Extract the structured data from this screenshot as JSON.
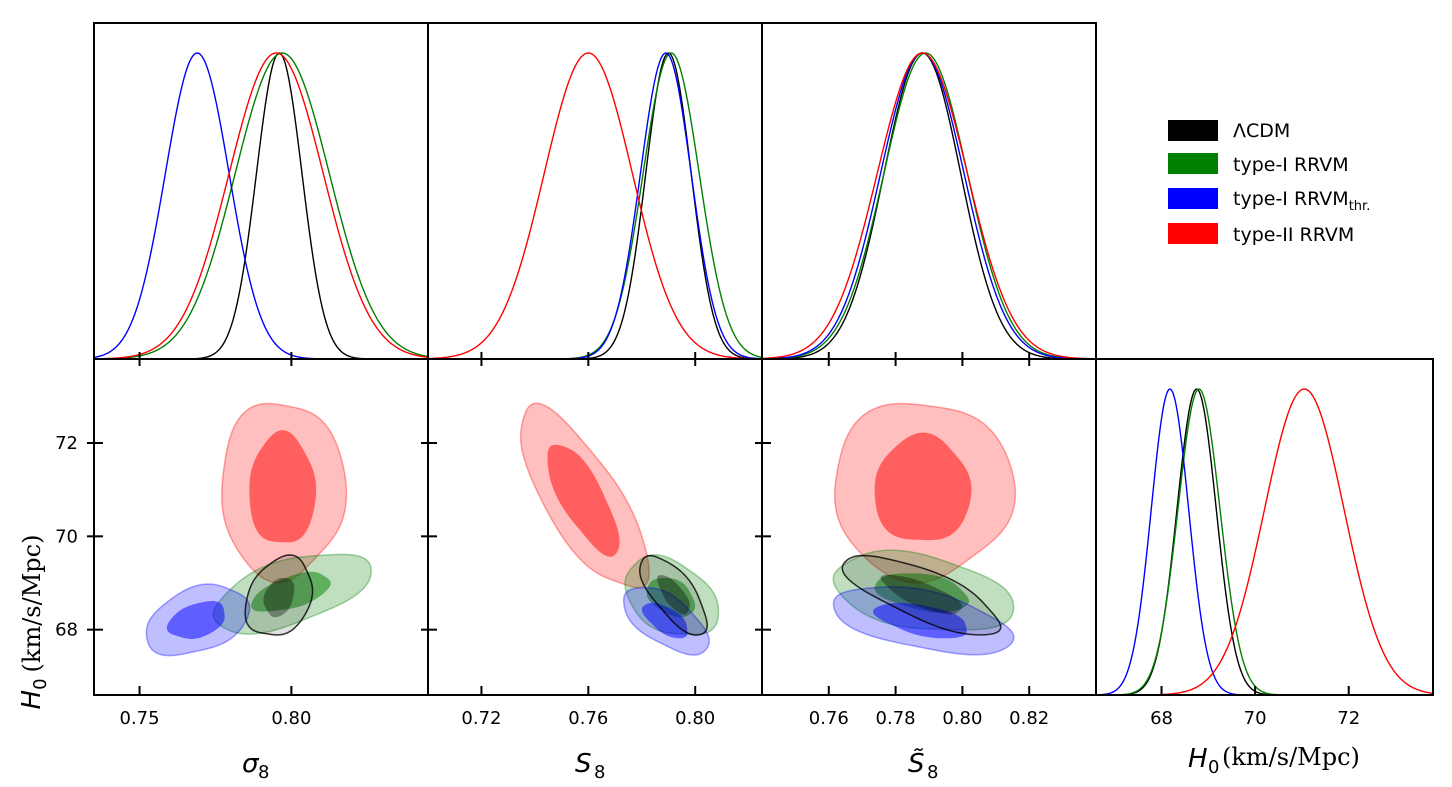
{
  "chart_data": {
    "type": "triangle",
    "legend": [
      {
        "name": "ΛCDM",
        "color": "#000000"
      },
      {
        "name": "type-I RRVM",
        "color": "#008000"
      },
      {
        "name": "type-I RRVM",
        "sub": "thr.",
        "color": "#0000ff"
      },
      {
        "name": "type-II RRVM",
        "color": "#ff0000"
      }
    ],
    "labels": {
      "sigma8": {
        "main": "σ",
        "sub": "8"
      },
      "S8": {
        "main": "S",
        "sub": "8"
      },
      "S8t": {
        "main": "S̃",
        "sub": "8"
      },
      "H0x": {
        "main": "H",
        "sub": "0",
        "unit": "(km/s/Mpc)"
      },
      "H0y": {
        "main": "H",
        "sub": "0",
        "unit": "(km/s/Mpc)"
      }
    },
    "axes": {
      "sigma8": {
        "range": [
          0.735,
          0.845
        ],
        "ticks": [
          0.75,
          0.8
        ],
        "tick_labels": [
          "0.75",
          "0.80"
        ]
      },
      "S8": {
        "range": [
          0.7,
          0.825
        ],
        "ticks": [
          0.72,
          0.76,
          0.8
        ],
        "tick_labels": [
          "0.72",
          "0.76",
          "0.80"
        ]
      },
      "S8t": {
        "range": [
          0.74,
          0.84
        ],
        "ticks": [
          0.76,
          0.78,
          0.8,
          0.82
        ],
        "tick_labels": [
          "0.76",
          "0.78",
          "0.80",
          "0.82"
        ]
      },
      "H0": {
        "range": [
          66.6,
          73.8
        ],
        "ticks": [
          68,
          70,
          72
        ],
        "tick_labels": [
          "68",
          "70",
          "72"
        ]
      }
    },
    "marginals": {
      "sigma8": [
        {
          "name": "ΛCDM",
          "mean": 0.796,
          "sigma": 0.0075
        },
        {
          "name": "type-I RRVM",
          "mean": 0.797,
          "sigma": 0.0155
        },
        {
          "name": "type-I RRVM thr.",
          "mean": 0.769,
          "sigma": 0.0105
        },
        {
          "name": "type-II RRVM",
          "mean": 0.795,
          "sigma": 0.0155
        }
      ],
      "S8": [
        {
          "name": "ΛCDM",
          "mean": 0.79,
          "sigma": 0.0085
        },
        {
          "name": "type-I RRVM",
          "mean": 0.791,
          "sigma": 0.0105
        },
        {
          "name": "type-I RRVM thr.",
          "mean": 0.789,
          "sigma": 0.0095
        },
        {
          "name": "type-II RRVM",
          "mean": 0.76,
          "sigma": 0.0165
        }
      ],
      "S8t": [
        {
          "name": "ΛCDM",
          "mean": 0.788,
          "sigma": 0.0115
        },
        {
          "name": "type-I RRVM",
          "mean": 0.789,
          "sigma": 0.0125
        },
        {
          "name": "type-I RRVM thr.",
          "mean": 0.788,
          "sigma": 0.0125
        },
        {
          "name": "type-II RRVM",
          "mean": 0.788,
          "sigma": 0.0135
        }
      ],
      "H0": [
        {
          "name": "ΛCDM",
          "mean": 68.75,
          "sigma": 0.42
        },
        {
          "name": "type-I RRVM",
          "mean": 68.8,
          "sigma": 0.45
        },
        {
          "name": "type-I RRVM thr.",
          "mean": 68.18,
          "sigma": 0.4
        },
        {
          "name": "type-II RRVM",
          "mean": 71.05,
          "sigma": 0.85
        }
      ]
    },
    "contours": {
      "sigma8": [
        {
          "name": "type-II RRVM",
          "mean": [
            0.797,
            71.0
          ],
          "outer": [
            0.0205,
            1.9
          ],
          "inner": [
            0.011,
            1.2
          ],
          "rho": 0.0
        },
        {
          "name": "type-I RRVM",
          "mean": [
            0.8,
            68.8
          ],
          "outer": [
            0.026,
            0.85
          ],
          "inner": [
            0.013,
            0.42
          ],
          "rho": 0.55
        },
        {
          "name": "type-I RRVM thr.",
          "mean": [
            0.769,
            68.2
          ],
          "outer": [
            0.017,
            0.75
          ],
          "inner": [
            0.0095,
            0.4
          ],
          "rho": 0.35
        },
        {
          "name": "ΛCDM",
          "mean": [
            0.796,
            68.7
          ],
          "outer": [
            0.011,
            0.85
          ],
          "inner": [
            0.005,
            0.42
          ],
          "rho": 0.25
        }
      ],
      "S8": [
        {
          "name": "type-II RRVM",
          "mean": [
            0.758,
            70.8
          ],
          "outer": [
            0.024,
            1.95
          ],
          "inner": [
            0.0135,
            1.2
          ],
          "rho": -0.75
        },
        {
          "name": "type-I RRVM",
          "mean": [
            0.791,
            68.7
          ],
          "outer": [
            0.0175,
            0.85
          ],
          "inner": [
            0.009,
            0.42
          ],
          "rho": -0.35
        },
        {
          "name": "type-I RRVM thr.",
          "mean": [
            0.789,
            68.2
          ],
          "outer": [
            0.016,
            0.72
          ],
          "inner": [
            0.0085,
            0.38
          ],
          "rho": -0.6
        },
        {
          "name": "ΛCDM",
          "mean": [
            0.792,
            68.75
          ],
          "outer": [
            0.0125,
            0.85
          ],
          "inner": [
            0.006,
            0.42
          ],
          "rho": -0.7
        }
      ],
      "S8t": [
        {
          "name": "type-II RRVM",
          "mean": [
            0.788,
            71.0
          ],
          "outer": [
            0.027,
            1.9
          ],
          "inner": [
            0.0145,
            1.15
          ],
          "rho": 0.0
        },
        {
          "name": "type-I RRVM",
          "mean": [
            0.788,
            68.8
          ],
          "outer": [
            0.027,
            0.85
          ],
          "inner": [
            0.014,
            0.42
          ],
          "rho": -0.35
        },
        {
          "name": "type-I RRVM thr.",
          "mean": [
            0.788,
            68.2
          ],
          "outer": [
            0.027,
            0.72
          ],
          "inner": [
            0.014,
            0.38
          ],
          "rho": -0.5
        },
        {
          "name": "ΛCDM",
          "mean": [
            0.788,
            68.75
          ],
          "outer": [
            0.0235,
            0.85
          ],
          "inner": [
            0.012,
            0.42
          ],
          "rho": -0.75
        }
      ]
    }
  }
}
